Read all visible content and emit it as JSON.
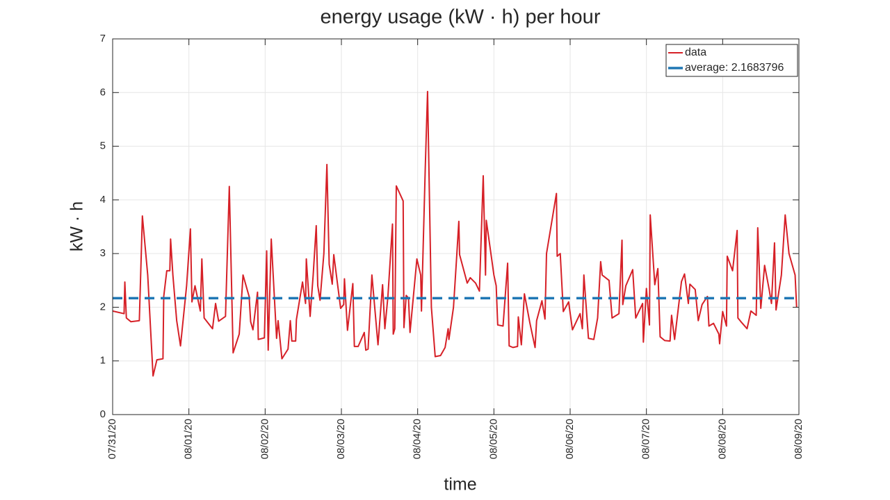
{
  "chart_data": {
    "type": "line",
    "title": "energy usage (kW · h) per hour",
    "x_label": "time",
    "y_label": "kW · h",
    "xlim": [
      0,
      9
    ],
    "ylim": [
      0,
      7
    ],
    "xticks": [
      {
        "value": 0,
        "label": "07/31/20"
      },
      {
        "value": 1,
        "label": "08/01/20"
      },
      {
        "value": 2,
        "label": "08/02/20"
      },
      {
        "value": 3,
        "label": "08/03/20"
      },
      {
        "value": 4,
        "label": "08/04/20"
      },
      {
        "value": 5,
        "label": "08/05/20"
      },
      {
        "value": 6,
        "label": "08/06/20"
      },
      {
        "value": 7,
        "label": "08/07/20"
      },
      {
        "value": 8,
        "label": "08/08/20"
      },
      {
        "value": 9,
        "label": "08/09/20"
      }
    ],
    "yticks": [
      0,
      1,
      2,
      3,
      4,
      5,
      6,
      7
    ],
    "grid": true,
    "legend": "upper right",
    "series": [
      {
        "name": "data",
        "color": "#d62027",
        "dashed": false,
        "x": [
          0,
          0.15,
          0.16,
          0.18,
          0.24,
          0.35,
          0.39,
          0.46,
          0.53,
          0.58,
          0.66,
          0.67,
          0.71,
          0.75,
          0.76,
          0.79,
          0.84,
          0.89,
          0.97,
          1.02,
          1.04,
          1.08,
          1.15,
          1.17,
          1.2,
          1.31,
          1.35,
          1.39,
          1.48,
          1.53,
          1.58,
          1.66,
          1.71,
          1.79,
          1.81,
          1.84,
          1.9,
          1.91,
          1.99,
          2.02,
          2.04,
          2.08,
          2.15,
          2.17,
          2.22,
          2.3,
          2.33,
          2.35,
          2.4,
          2.41,
          2.49,
          2.53,
          2.54,
          2.59,
          2.63,
          2.67,
          2.69,
          2.72,
          2.77,
          2.81,
          2.84,
          2.88,
          2.9,
          2.99,
          3.03,
          3.04,
          3.08,
          3.15,
          3.17,
          3.22,
          3.3,
          3.32,
          3.35,
          3.4,
          3.48,
          3.54,
          3.57,
          3.61,
          3.67,
          3.68,
          3.7,
          3.72,
          3.81,
          3.82,
          3.85,
          3.88,
          3.9,
          3.99,
          4.04,
          4.05,
          4.1,
          4.13,
          4.18,
          4.23,
          4.3,
          4.36,
          4.4,
          4.41,
          4.47,
          4.51,
          4.54,
          4.55,
          4.65,
          4.69,
          4.76,
          4.81,
          4.86,
          4.89,
          4.9,
          5,
          5.03,
          5.05,
          5.12,
          5.18,
          5.2,
          5.25,
          5.31,
          5.32,
          5.36,
          5.4,
          5.47,
          5.54,
          5.56,
          5.63,
          5.67,
          5.69,
          5.82,
          5.83,
          5.87,
          5.91,
          5.98,
          6.03,
          6.13,
          6.16,
          6.18,
          6.24,
          6.31,
          6.36,
          6.4,
          6.42,
          6.51,
          6.55,
          6.64,
          6.68,
          6.69,
          6.73,
          6.82,
          6.86,
          6.95,
          6.96,
          7,
          7.04,
          7.05,
          7.11,
          7.15,
          7.16,
          7.18,
          7.24,
          7.31,
          7.33,
          7.37,
          7.46,
          7.5,
          7.55,
          7.57,
          7.64,
          7.68,
          7.73,
          7.8,
          7.82,
          7.88,
          7.95,
          7.96,
          8,
          8.05,
          8.06,
          8.13,
          8.19,
          8.2,
          8.24,
          8.32,
          8.37,
          8.44,
          8.46,
          8.5,
          8.55,
          8.61,
          8.64,
          8.68,
          8.7,
          8.77,
          8.82,
          8.87,
          8.95,
          8.97
        ],
        "values": [
          1.93,
          1.88,
          2.47,
          1.8,
          1.73,
          1.75,
          3.7,
          2.6,
          0.72,
          1.02,
          1.04,
          2.2,
          2.68,
          2.68,
          3.27,
          2.6,
          1.75,
          1.28,
          2.4,
          3.46,
          2.1,
          2.4,
          1.93,
          2.9,
          1.8,
          1.6,
          2.07,
          1.74,
          1.83,
          4.25,
          1.15,
          1.5,
          2.6,
          2.2,
          1.73,
          1.58,
          2.28,
          1.4,
          1.43,
          3.05,
          1.2,
          3.27,
          1.42,
          1.75,
          1.04,
          1.22,
          1.75,
          1.37,
          1.37,
          1.77,
          2.47,
          2.07,
          2.9,
          1.83,
          2.6,
          3.52,
          2.4,
          2.13,
          3.0,
          4.66,
          2.8,
          2.43,
          2.98,
          1.98,
          2.05,
          2.53,
          1.57,
          2.44,
          1.27,
          1.27,
          1.53,
          1.2,
          1.22,
          2.6,
          1.3,
          2.42,
          1.6,
          2.2,
          3.55,
          1.5,
          1.6,
          4.26,
          3.98,
          1.62,
          2.22,
          2.17,
          1.53,
          2.9,
          2.6,
          1.93,
          4.6,
          6.02,
          2.0,
          1.08,
          1.1,
          1.25,
          1.6,
          1.4,
          2.0,
          2.9,
          3.6,
          2.98,
          2.45,
          2.55,
          2.45,
          2.3,
          4.45,
          2.6,
          3.62,
          2.6,
          2.4,
          1.67,
          1.65,
          2.82,
          1.28,
          1.25,
          1.27,
          1.82,
          1.3,
          2.25,
          1.72,
          1.25,
          1.75,
          2.12,
          1.78,
          3.0,
          4.12,
          2.95,
          3.0,
          1.92,
          2.1,
          1.58,
          1.88,
          1.6,
          2.6,
          1.42,
          1.4,
          1.8,
          2.85,
          2.6,
          2.5,
          1.8,
          1.88,
          3.25,
          2.05,
          2.4,
          2.7,
          1.8,
          2.07,
          1.35,
          2.35,
          1.67,
          3.72,
          2.42,
          2.72,
          2.3,
          1.45,
          1.38,
          1.37,
          1.85,
          1.4,
          2.48,
          2.62,
          2.07,
          2.43,
          2.33,
          1.75,
          2.05,
          2.2,
          1.65,
          1.7,
          1.5,
          1.32,
          1.92,
          1.65,
          2.95,
          2.68,
          3.43,
          1.8,
          1.73,
          1.6,
          1.93,
          1.85,
          3.48,
          1.98,
          2.78,
          2.33,
          2.07,
          3.2,
          1.95,
          2.6,
          3.72,
          3.0,
          2.6,
          2.0
        ]
      },
      {
        "name": "average: 2.1683796",
        "color": "#1f77b4",
        "dashed": true,
        "x": [
          0,
          9
        ],
        "values": [
          2.1683796,
          2.1683796
        ]
      }
    ]
  }
}
